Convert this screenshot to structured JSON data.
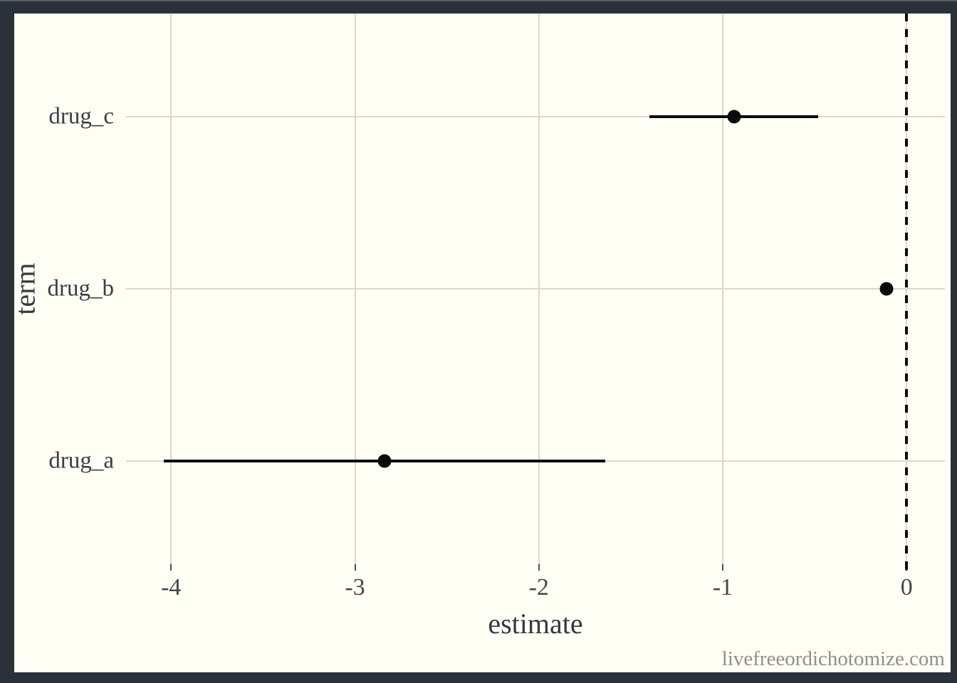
{
  "page": {
    "watermark": "livefreeordichotomize.com"
  },
  "colors": {
    "frame": "#2b3138",
    "plot_background": "#fffef4",
    "gridline": "#d8d8d1",
    "data": "#0b0b0b",
    "axis_text": "#41474d",
    "watermark_text": "#90908a"
  },
  "chart_data": {
    "type": "scatter",
    "subtype": "dot-and-whisker coefficient plot",
    "title": "",
    "xlabel": "estimate",
    "ylabel": "term",
    "xlim": [
      -4.245,
      0.208
    ],
    "x_ticks": [
      -4,
      -3,
      -2,
      -1,
      0
    ],
    "grid": true,
    "legend": false,
    "reference_line": {
      "x": 0,
      "style": "dashed",
      "color": "#0b0b0b"
    },
    "categories": [
      "drug_c",
      "drug_b",
      "drug_a"
    ],
    "points": [
      {
        "term": "drug_c",
        "estimate": -0.94,
        "conf_low": -1.4,
        "conf_high": -0.48
      },
      {
        "term": "drug_b",
        "estimate": -0.11,
        "conf_low": -0.11,
        "conf_high": -0.11
      },
      {
        "term": "drug_a",
        "estimate": -2.84,
        "conf_low": -4.04,
        "conf_high": -1.64
      }
    ]
  }
}
